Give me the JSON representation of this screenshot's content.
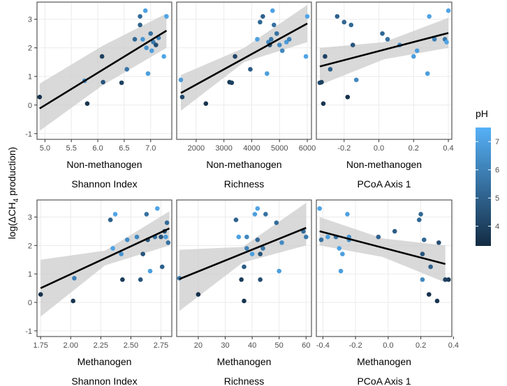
{
  "chart_data": {
    "type": "scatter",
    "ylabel_prefix": "log(ΔCH",
    "ylabel_sub": "4",
    "ylabel_suffix": " production)",
    "ylim": [
      -1.2,
      3.6
    ],
    "yticks": [
      "-1",
      "0",
      "1",
      "2",
      "3"
    ],
    "yticks_values": [
      -1,
      0,
      1,
      2,
      3
    ],
    "legend": {
      "title": "pH",
      "range": [
        3.3,
        7.5
      ],
      "ticks": [
        4,
        5,
        6,
        7
      ],
      "tick_labels": [
        "4",
        "5",
        "6",
        "7"
      ],
      "color_low": "#132B43",
      "color_high": "#56B1F7",
      "placement": "right"
    },
    "colors": {
      "panel_border": "#333333",
      "grid": "#ebebeb",
      "ribbon": "#cccccc",
      "fit_line": "#000000",
      "text": "#000000",
      "tick_text": "#4d4d4d"
    },
    "panels": [
      {
        "id": "nm-shannon",
        "xlabel": "Non-methanogen",
        "sublabel": "Shannon Index",
        "xlim": [
          4.85,
          7.4
        ],
        "xticks": [
          5.0,
          5.5,
          6.0,
          6.5,
          7.0
        ],
        "xtick_labels": [
          "5.0",
          "5.5",
          "6.0",
          "6.5",
          "7.0"
        ],
        "fit": {
          "x0": 4.9,
          "y0": -0.12,
          "x1": 7.3,
          "y1": 2.6
        },
        "band": {
          "lower": [
            -0.9,
            0.7,
            2.0
          ],
          "upper": [
            0.75,
            2.08,
            3.2
          ]
        },
        "points": [
          {
            "x": 4.9,
            "y": 0.28,
            "ph": 3.5
          },
          {
            "x": 5.75,
            "y": 0.85,
            "ph": 6.3
          },
          {
            "x": 5.8,
            "y": 0.05,
            "ph": 3.6
          },
          {
            "x": 6.08,
            "y": 1.7,
            "ph": 4.0
          },
          {
            "x": 6.1,
            "y": 0.8,
            "ph": 4.6
          },
          {
            "x": 6.45,
            "y": 0.78,
            "ph": 4.0
          },
          {
            "x": 6.55,
            "y": 1.25,
            "ph": 5.6
          },
          {
            "x": 6.7,
            "y": 2.3,
            "ph": 5.2
          },
          {
            "x": 6.8,
            "y": 2.8,
            "ph": 5.0
          },
          {
            "x": 6.8,
            "y": 3.1,
            "ph": 5.3
          },
          {
            "x": 6.85,
            "y": 2.3,
            "ph": 6.7
          },
          {
            "x": 6.9,
            "y": 3.3,
            "ph": 7.0
          },
          {
            "x": 6.92,
            "y": 2.0,
            "ph": 6.6
          },
          {
            "x": 6.95,
            "y": 1.1,
            "ph": 6.9
          },
          {
            "x": 7.0,
            "y": 2.5,
            "ph": 5.5
          },
          {
            "x": 7.02,
            "y": 1.9,
            "ph": 6.9
          },
          {
            "x": 7.05,
            "y": 2.2,
            "ph": 5.8
          },
          {
            "x": 7.1,
            "y": 2.1,
            "ph": 4.4
          },
          {
            "x": 7.15,
            "y": 2.35,
            "ph": 6.0
          },
          {
            "x": 7.25,
            "y": 1.7,
            "ph": 7.1
          },
          {
            "x": 7.3,
            "y": 3.1,
            "ph": 7.1
          }
        ]
      },
      {
        "id": "nm-richness",
        "xlabel": "Non-methanogen",
        "sublabel": "Richness",
        "xlim": [
          1300,
          6150
        ],
        "xticks": [
          2000,
          3000,
          4000,
          5000,
          6000
        ],
        "xtick_labels": [
          "2000",
          "3000",
          "4000",
          "5000",
          "6000"
        ],
        "fit": {
          "x0": 1450,
          "y0": 0.42,
          "x1": 6000,
          "y1": 2.85
        },
        "band": {
          "lower": [
            -0.2,
            1.5,
            2.2
          ],
          "upper": [
            1.05,
            2.0,
            3.5
          ]
        },
        "points": [
          {
            "x": 1450,
            "y": 0.88,
            "ph": 6.8
          },
          {
            "x": 1500,
            "y": 0.28,
            "ph": 4.2
          },
          {
            "x": 2350,
            "y": 0.05,
            "ph": 3.6
          },
          {
            "x": 3200,
            "y": 0.8,
            "ph": 3.8
          },
          {
            "x": 3280,
            "y": 0.78,
            "ph": 4.0
          },
          {
            "x": 3400,
            "y": 1.7,
            "ph": 4.1
          },
          {
            "x": 3950,
            "y": 1.25,
            "ph": 4.8
          },
          {
            "x": 4200,
            "y": 2.3,
            "ph": 7.0
          },
          {
            "x": 4300,
            "y": 2.9,
            "ph": 5.2
          },
          {
            "x": 4400,
            "y": 3.1,
            "ph": 5.0
          },
          {
            "x": 4550,
            "y": 1.1,
            "ph": 6.9
          },
          {
            "x": 4600,
            "y": 2.2,
            "ph": 6.2
          },
          {
            "x": 4650,
            "y": 2.1,
            "ph": 4.5
          },
          {
            "x": 4700,
            "y": 2.3,
            "ph": 5.7
          },
          {
            "x": 4750,
            "y": 3.3,
            "ph": 7.0
          },
          {
            "x": 4800,
            "y": 2.8,
            "ph": 5.5
          },
          {
            "x": 4900,
            "y": 2.5,
            "ph": 5.5
          },
          {
            "x": 5000,
            "y": 2.1,
            "ph": 6.3
          },
          {
            "x": 5100,
            "y": 1.9,
            "ph": 6.2
          },
          {
            "x": 5250,
            "y": 2.2,
            "ph": 6.8
          },
          {
            "x": 5350,
            "y": 2.3,
            "ph": 6.0
          },
          {
            "x": 5950,
            "y": 1.7,
            "ph": 7.1
          },
          {
            "x": 6000,
            "y": 3.1,
            "ph": 7.1
          }
        ]
      },
      {
        "id": "nm-pcoa",
        "xlabel": "Non-methanogen",
        "sublabel": "PCoA Axis 1",
        "xlim": [
          -0.36,
          0.42
        ],
        "xticks": [
          -0.2,
          0.0,
          0.2,
          0.4
        ],
        "xtick_labels": [
          "-0.2",
          "0.0",
          "0.2",
          "0.4"
        ],
        "fit": {
          "x0": -0.34,
          "y0": 1.35,
          "x1": 0.4,
          "y1": 2.52
        },
        "band": {
          "lower": [
            0.7,
            1.6,
            2.0
          ],
          "upper": [
            2.0,
            2.2,
            3.05
          ]
        },
        "points": [
          {
            "x": -0.34,
            "y": 0.78,
            "ph": 4.2
          },
          {
            "x": -0.33,
            "y": 0.8,
            "ph": 4.0
          },
          {
            "x": -0.32,
            "y": 0.05,
            "ph": 3.6
          },
          {
            "x": -0.31,
            "y": 1.7,
            "ph": 4.0
          },
          {
            "x": -0.28,
            "y": 1.25,
            "ph": 5.0
          },
          {
            "x": -0.24,
            "y": 3.1,
            "ph": 5.0
          },
          {
            "x": -0.2,
            "y": 2.9,
            "ph": 5.2
          },
          {
            "x": -0.18,
            "y": 0.28,
            "ph": 3.5
          },
          {
            "x": -0.16,
            "y": 2.8,
            "ph": 5.2
          },
          {
            "x": -0.15,
            "y": 2.1,
            "ph": 4.6
          },
          {
            "x": -0.13,
            "y": 0.88,
            "ph": 6.2
          },
          {
            "x": 0.02,
            "y": 2.5,
            "ph": 5.2
          },
          {
            "x": 0.05,
            "y": 2.3,
            "ph": 5.5
          },
          {
            "x": 0.12,
            "y": 2.1,
            "ph": 6.3
          },
          {
            "x": 0.2,
            "y": 1.7,
            "ph": 6.9
          },
          {
            "x": 0.22,
            "y": 1.9,
            "ph": 6.9
          },
          {
            "x": 0.28,
            "y": 1.1,
            "ph": 6.9
          },
          {
            "x": 0.29,
            "y": 3.1,
            "ph": 7.0
          },
          {
            "x": 0.32,
            "y": 2.3,
            "ph": 6.0
          },
          {
            "x": 0.38,
            "y": 2.3,
            "ph": 5.7
          },
          {
            "x": 0.39,
            "y": 2.2,
            "ph": 7.1
          },
          {
            "x": 0.4,
            "y": 3.3,
            "ph": 7.1
          }
        ]
      },
      {
        "id": "m-shannon",
        "xlabel": "Methanogen",
        "sublabel": "Shannon Index",
        "xlim": [
          1.72,
          2.84
        ],
        "xticks": [
          1.75,
          2.0,
          2.25,
          2.5,
          2.75
        ],
        "xtick_labels": [
          "1.75",
          "2.00",
          "2.25",
          "2.50",
          "2.75"
        ],
        "fit": {
          "x0": 1.75,
          "y0": 0.5,
          "x1": 2.82,
          "y1": 2.6
        },
        "band": {
          "lower": [
            -0.5,
            1.3,
            2.0
          ],
          "upper": [
            1.5,
            1.82,
            3.2
          ]
        },
        "points": [
          {
            "x": 1.75,
            "y": 0.28,
            "ph": 3.5
          },
          {
            "x": 2.02,
            "y": 0.05,
            "ph": 3.6
          },
          {
            "x": 2.03,
            "y": 0.85,
            "ph": 6.0
          },
          {
            "x": 2.33,
            "y": 2.9,
            "ph": 5.0
          },
          {
            "x": 2.35,
            "y": 1.9,
            "ph": 7.0
          },
          {
            "x": 2.37,
            "y": 3.1,
            "ph": 7.1
          },
          {
            "x": 2.42,
            "y": 1.7,
            "ph": 6.6
          },
          {
            "x": 2.43,
            "y": 0.8,
            "ph": 3.8
          },
          {
            "x": 2.47,
            "y": 2.2,
            "ph": 6.3
          },
          {
            "x": 2.55,
            "y": 2.3,
            "ph": 6.2
          },
          {
            "x": 2.58,
            "y": 0.8,
            "ph": 4.6
          },
          {
            "x": 2.6,
            "y": 1.7,
            "ph": 4.6
          },
          {
            "x": 2.63,
            "y": 3.1,
            "ph": 5.5
          },
          {
            "x": 2.64,
            "y": 2.2,
            "ph": 4.7
          },
          {
            "x": 2.66,
            "y": 1.1,
            "ph": 6.9
          },
          {
            "x": 2.7,
            "y": 2.3,
            "ph": 5.5
          },
          {
            "x": 2.72,
            "y": 3.3,
            "ph": 7.1
          },
          {
            "x": 2.75,
            "y": 2.3,
            "ph": 4.6
          },
          {
            "x": 2.76,
            "y": 1.25,
            "ph": 5.0
          },
          {
            "x": 2.78,
            "y": 2.5,
            "ph": 4.4
          },
          {
            "x": 2.79,
            "y": 2.3,
            "ph": 6.8
          },
          {
            "x": 2.8,
            "y": 2.8,
            "ph": 5.3
          },
          {
            "x": 2.81,
            "y": 2.1,
            "ph": 5.5
          }
        ]
      },
      {
        "id": "m-richness",
        "xlabel": "Methanogen",
        "sublabel": "Richness",
        "xlim": [
          12,
          62
        ],
        "xticks": [
          20,
          30,
          40,
          50,
          60
        ],
        "xtick_labels": [
          "20",
          "30",
          "40",
          "50",
          "60"
        ],
        "fit": {
          "x0": 13,
          "y0": 0.82,
          "x1": 60,
          "y1": 2.62
        },
        "band": {
          "lower": [
            -0.3,
            1.4,
            2.0
          ],
          "upper": [
            1.85,
            1.95,
            3.5
          ]
        },
        "points": [
          {
            "x": 13,
            "y": 0.85,
            "ph": 5.8
          },
          {
            "x": 20,
            "y": 0.28,
            "ph": 3.5
          },
          {
            "x": 34,
            "y": 2.9,
            "ph": 5.0
          },
          {
            "x": 35,
            "y": 2.3,
            "ph": 7.0
          },
          {
            "x": 36,
            "y": 0.8,
            "ph": 3.8
          },
          {
            "x": 37,
            "y": 1.25,
            "ph": 4.8
          },
          {
            "x": 37,
            "y": 0.05,
            "ph": 3.6
          },
          {
            "x": 38,
            "y": 1.9,
            "ph": 6.0
          },
          {
            "x": 38,
            "y": 2.3,
            "ph": 6.2
          },
          {
            "x": 40,
            "y": 1.7,
            "ph": 6.9
          },
          {
            "x": 41,
            "y": 3.1,
            "ph": 6.9
          },
          {
            "x": 42,
            "y": 3.3,
            "ph": 7.1
          },
          {
            "x": 42,
            "y": 2.2,
            "ph": 5.2
          },
          {
            "x": 43,
            "y": 1.7,
            "ph": 4.6
          },
          {
            "x": 43,
            "y": 0.8,
            "ph": 4.4
          },
          {
            "x": 44,
            "y": 1.9,
            "ph": 5.7
          },
          {
            "x": 45,
            "y": 3.1,
            "ph": 5.5
          },
          {
            "x": 49,
            "y": 2.8,
            "ph": 5.3
          },
          {
            "x": 50,
            "y": 1.1,
            "ph": 6.9
          },
          {
            "x": 51,
            "y": 2.1,
            "ph": 6.3
          },
          {
            "x": 59,
            "y": 2.5,
            "ph": 5.3
          },
          {
            "x": 60,
            "y": 2.3,
            "ph": 5.8
          }
        ]
      },
      {
        "id": "m-pcoa",
        "xlabel": "Methanogen",
        "sublabel": "PCoA Axis 1",
        "xlim": [
          -0.44,
          0.39
        ],
        "xticks": [
          -0.4,
          -0.2,
          0.0,
          0.2,
          0.4
        ],
        "xtick_labels": [
          "-0.4",
          "-0.2",
          "0.0",
          "0.2",
          "0.4"
        ],
        "fit": {
          "x0": -0.42,
          "y0": 2.5,
          "x1": 0.35,
          "y1": 1.35
        },
        "band": {
          "lower": [
            2.0,
            1.6,
            0.7
          ],
          "upper": [
            3.0,
            2.25,
            2.0
          ]
        },
        "points": [
          {
            "x": -0.42,
            "y": 3.3,
            "ph": 7.1
          },
          {
            "x": -0.41,
            "y": 2.2,
            "ph": 5.5
          },
          {
            "x": -0.37,
            "y": 2.3,
            "ph": 6.9
          },
          {
            "x": -0.32,
            "y": 2.3,
            "ph": 5.5
          },
          {
            "x": -0.3,
            "y": 1.9,
            "ph": 7.0
          },
          {
            "x": -0.29,
            "y": 1.1,
            "ph": 6.9
          },
          {
            "x": -0.28,
            "y": 1.7,
            "ph": 6.9
          },
          {
            "x": -0.25,
            "y": 3.1,
            "ph": 7.0
          },
          {
            "x": -0.24,
            "y": 2.2,
            "ph": 6.2
          },
          {
            "x": -0.24,
            "y": 2.3,
            "ph": 6.6
          },
          {
            "x": -0.06,
            "y": 2.3,
            "ph": 5.0
          },
          {
            "x": 0.04,
            "y": 2.5,
            "ph": 4.8
          },
          {
            "x": 0.19,
            "y": 2.9,
            "ph": 5.2
          },
          {
            "x": 0.2,
            "y": 3.1,
            "ph": 5.2
          },
          {
            "x": 0.21,
            "y": 0.8,
            "ph": 6.2
          },
          {
            "x": 0.21,
            "y": 1.7,
            "ph": 4.6
          },
          {
            "x": 0.22,
            "y": 2.2,
            "ph": 5.2
          },
          {
            "x": 0.25,
            "y": 0.28,
            "ph": 3.5
          },
          {
            "x": 0.26,
            "y": 1.25,
            "ph": 5.0
          },
          {
            "x": 0.3,
            "y": 0.05,
            "ph": 3.6
          },
          {
            "x": 0.31,
            "y": 2.1,
            "ph": 4.4
          },
          {
            "x": 0.35,
            "y": 0.8,
            "ph": 4.0
          },
          {
            "x": 0.37,
            "y": 0.8,
            "ph": 3.8
          }
        ]
      }
    ]
  }
}
